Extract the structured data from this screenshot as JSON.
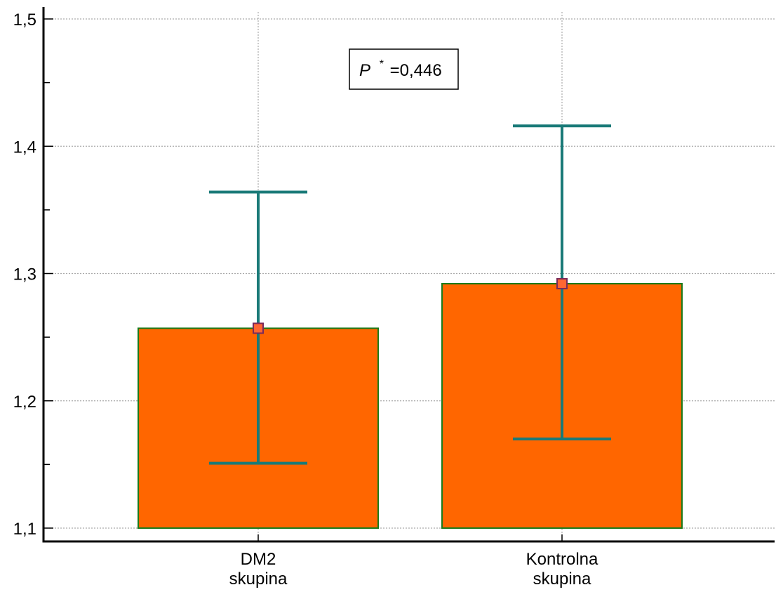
{
  "chart_data": {
    "type": "bar",
    "categories": [
      [
        "DM2",
        "skupina"
      ],
      [
        "Kontrolna",
        "skupina"
      ]
    ],
    "series": [
      {
        "values": [
          1.257,
          1.292
        ],
        "error_low": [
          1.151,
          1.17
        ],
        "error_high": [
          1.364,
          1.416
        ]
      }
    ],
    "ylim": [
      1.1,
      1.5
    ],
    "yticks": [
      "1,1",
      "1,2",
      "1,3",
      "1,4",
      "1,5"
    ],
    "ytick_values": [
      1.1,
      1.2,
      1.3,
      1.4,
      1.5
    ],
    "grid": true,
    "annotation": {
      "p_label": "P",
      "p_superscript": "*",
      "p_value_text": "=0,446"
    },
    "colors": {
      "bar_fill": "#ff6600",
      "bar_edge": "#1a7a1a",
      "error_bar": "#1a7a78",
      "marker_fill": "#ff6633",
      "marker_edge": "#7a2a5a",
      "grid": "#aaaaaa",
      "axis": "#000000"
    }
  }
}
